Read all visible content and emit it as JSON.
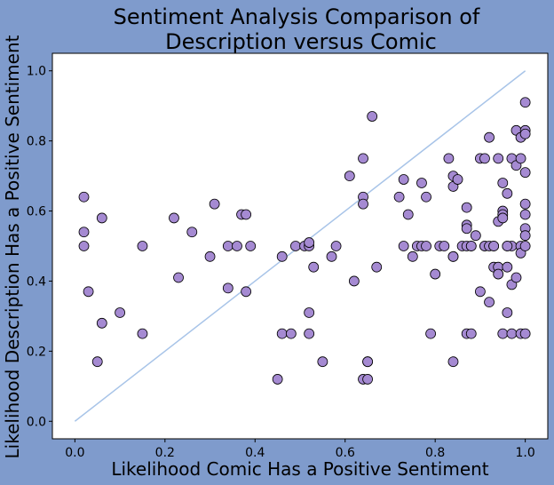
{
  "chart_data": {
    "type": "scatter",
    "title_lines": [
      "Sentiment Analysis Comparison of",
      "Description versus Comic"
    ],
    "xlabel": "Likelihood Comic Has a Positive Sentiment",
    "ylabel": "Likelihood Description Has a Positive Sentiment",
    "xlim": [
      -0.05,
      1.05
    ],
    "ylim": [
      -0.05,
      1.05
    ],
    "xticks": [
      "0.0",
      "0.2",
      "0.4",
      "0.6",
      "0.8",
      "1.0"
    ],
    "yticks": [
      "0.0",
      "0.2",
      "0.4",
      "0.6",
      "0.8",
      "1.0"
    ],
    "grid": false,
    "colors": {
      "background": "#7f9bcc",
      "plot_area": "#ffffff",
      "marker_fill": "#a58ad2",
      "marker_edge": "#000000",
      "reference_line": "#a8c4e8"
    },
    "reference_line": {
      "x": [
        0,
        1
      ],
      "y": [
        0,
        1
      ]
    },
    "points": [
      [
        0.02,
        0.64
      ],
      [
        0.02,
        0.54
      ],
      [
        0.02,
        0.5
      ],
      [
        0.03,
        0.37
      ],
      [
        0.06,
        0.58
      ],
      [
        0.06,
        0.28
      ],
      [
        0.05,
        0.17
      ],
      [
        0.1,
        0.31
      ],
      [
        0.15,
        0.5
      ],
      [
        0.15,
        0.25
      ],
      [
        0.22,
        0.58
      ],
      [
        0.23,
        0.41
      ],
      [
        0.26,
        0.54
      ],
      [
        0.3,
        0.47
      ],
      [
        0.31,
        0.62
      ],
      [
        0.34,
        0.5
      ],
      [
        0.34,
        0.38
      ],
      [
        0.36,
        0.5
      ],
      [
        0.37,
        0.59
      ],
      [
        0.38,
        0.59
      ],
      [
        0.38,
        0.37
      ],
      [
        0.39,
        0.5
      ],
      [
        0.45,
        0.12
      ],
      [
        0.46,
        0.47
      ],
      [
        0.46,
        0.25
      ],
      [
        0.48,
        0.25
      ],
      [
        0.49,
        0.5
      ],
      [
        0.51,
        0.5
      ],
      [
        0.52,
        0.5
      ],
      [
        0.52,
        0.51
      ],
      [
        0.52,
        0.25
      ],
      [
        0.52,
        0.31
      ],
      [
        0.53,
        0.44
      ],
      [
        0.55,
        0.17
      ],
      [
        0.57,
        0.47
      ],
      [
        0.58,
        0.5
      ],
      [
        0.61,
        0.7
      ],
      [
        0.62,
        0.4
      ],
      [
        0.64,
        0.75
      ],
      [
        0.64,
        0.64
      ],
      [
        0.64,
        0.62
      ],
      [
        0.64,
        0.12
      ],
      [
        0.65,
        0.12
      ],
      [
        0.65,
        0.17
      ],
      [
        0.65,
        0.17
      ],
      [
        0.66,
        0.87
      ],
      [
        0.67,
        0.44
      ],
      [
        0.72,
        0.64
      ],
      [
        0.73,
        0.5
      ],
      [
        0.73,
        0.69
      ],
      [
        0.74,
        0.59
      ],
      [
        0.75,
        0.47
      ],
      [
        0.76,
        0.5
      ],
      [
        0.77,
        0.5
      ],
      [
        0.77,
        0.68
      ],
      [
        0.78,
        0.64
      ],
      [
        0.78,
        0.5
      ],
      [
        0.79,
        0.25
      ],
      [
        0.8,
        0.42
      ],
      [
        0.81,
        0.5
      ],
      [
        0.82,
        0.5
      ],
      [
        0.83,
        0.75
      ],
      [
        0.84,
        0.47
      ],
      [
        0.84,
        0.47
      ],
      [
        0.84,
        0.7
      ],
      [
        0.84,
        0.67
      ],
      [
        0.85,
        0.69
      ],
      [
        0.84,
        0.17
      ],
      [
        0.86,
        0.5
      ],
      [
        0.87,
        0.5
      ],
      [
        0.87,
        0.56
      ],
      [
        0.87,
        0.55
      ],
      [
        0.87,
        0.61
      ],
      [
        0.87,
        0.25
      ],
      [
        0.88,
        0.25
      ],
      [
        0.88,
        0.5
      ],
      [
        0.88,
        0.5
      ],
      [
        0.89,
        0.53
      ],
      [
        0.9,
        0.37
      ],
      [
        0.9,
        0.75
      ],
      [
        0.91,
        0.75
      ],
      [
        0.91,
        0.5
      ],
      [
        0.91,
        0.5
      ],
      [
        0.92,
        0.5
      ],
      [
        0.92,
        0.34
      ],
      [
        0.92,
        0.81
      ],
      [
        0.93,
        0.5
      ],
      [
        0.93,
        0.5
      ],
      [
        0.93,
        0.44
      ],
      [
        0.94,
        0.57
      ],
      [
        0.94,
        0.44
      ],
      [
        0.94,
        0.42
      ],
      [
        0.94,
        0.75
      ],
      [
        0.95,
        0.6
      ],
      [
        0.95,
        0.59
      ],
      [
        0.95,
        0.68
      ],
      [
        0.95,
        0.25
      ],
      [
        0.95,
        0.58
      ],
      [
        0.96,
        0.44
      ],
      [
        0.96,
        0.5
      ],
      [
        0.96,
        0.65
      ],
      [
        0.96,
        0.31
      ],
      [
        0.97,
        0.75
      ],
      [
        0.97,
        0.5
      ],
      [
        0.97,
        0.39
      ],
      [
        0.97,
        0.25
      ],
      [
        0.98,
        0.83
      ],
      [
        0.98,
        0.73
      ],
      [
        0.98,
        0.41
      ],
      [
        0.99,
        0.5
      ],
      [
        0.99,
        0.48
      ],
      [
        0.99,
        0.81
      ],
      [
        0.99,
        0.75
      ],
      [
        0.99,
        0.25
      ],
      [
        1.0,
        0.91
      ],
      [
        1.0,
        0.83
      ],
      [
        1.0,
        0.82
      ],
      [
        1.0,
        0.71
      ],
      [
        1.0,
        0.62
      ],
      [
        1.0,
        0.59
      ],
      [
        1.0,
        0.55
      ],
      [
        1.0,
        0.53
      ],
      [
        1.0,
        0.5
      ],
      [
        1.0,
        0.25
      ],
      [
        0.96,
        0.5
      ]
    ]
  }
}
